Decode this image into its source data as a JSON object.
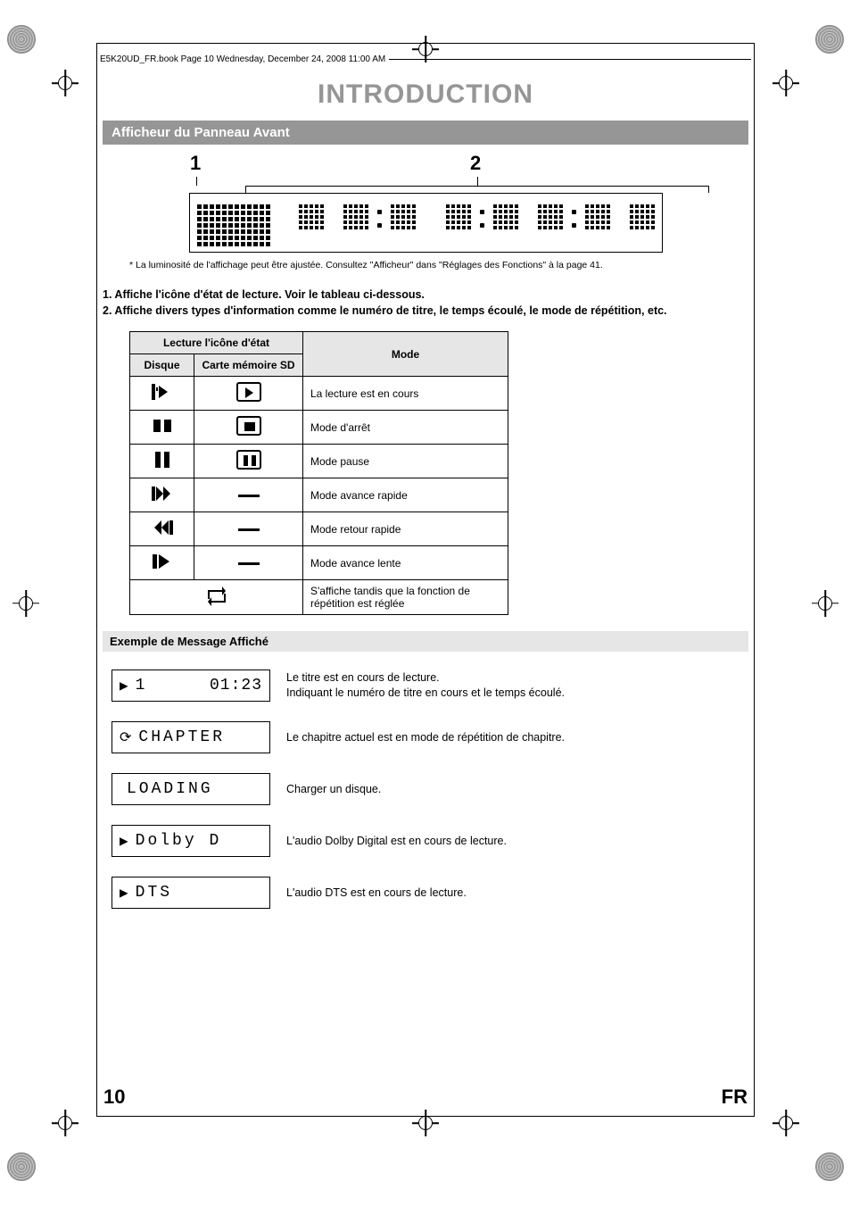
{
  "header_text": "E5K20UD_FR.book  Page 10  Wednesday, December 24, 2008  11:00 AM",
  "title": "INTRODUCTION",
  "section": "Afficheur du Panneau Avant",
  "figure": {
    "label1": "1",
    "label2": "2"
  },
  "figure_note": "* La luminosité de l'affichage peut être ajustée. Consultez \"Afficheur\" dans \"Réglages des Fonctions\" à la page 41.",
  "list": {
    "item1": "1.  Affiche l'icône d'état de lecture. Voir le tableau ci-dessous.",
    "item2": "2.  Affiche divers types d'information comme le numéro de titre, le temps écoulé, le mode de répétition, etc."
  },
  "table": {
    "head_icon": "Lecture l'icône d'état",
    "head_disc": "Disque",
    "head_sd": "Carte mémoire SD",
    "head_mode": "Mode",
    "rows": [
      {
        "mode": "La lecture est en cours",
        "sd": "play"
      },
      {
        "mode": "Mode d'arrêt",
        "sd": "stop"
      },
      {
        "mode": "Mode pause",
        "sd": "pause"
      },
      {
        "mode": "Mode avance rapide",
        "sd": "dash"
      },
      {
        "mode": "Mode retour rapide",
        "sd": "dash"
      },
      {
        "mode": "Mode avance lente",
        "sd": "dash"
      },
      {
        "mode": "S'affiche tandis que la fonction de répétition est réglée",
        "sd": "merged"
      }
    ]
  },
  "sub_section": "Exemple de Message Affiché",
  "examples": [
    {
      "pre": "▶",
      "txt": "1",
      "time": "01:23",
      "desc": "Le titre est en cours de lecture.\nIndiquant le numéro de titre en cours et le temps écoulé."
    },
    {
      "pre": "⟳",
      "txt": "CHAPTER",
      "time": "",
      "desc": "Le chapitre actuel est en mode de répétition de chapitre."
    },
    {
      "pre": "",
      "txt": "LOADING",
      "time": "",
      "desc": "Charger un disque."
    },
    {
      "pre": "▶",
      "txt": "Dolby D",
      "time": "",
      "desc": "L'audio Dolby Digital est en cours de lecture."
    },
    {
      "pre": "▶",
      "txt": "DTS",
      "time": "",
      "desc": "L'audio DTS est en cours de lecture."
    }
  ],
  "footer": {
    "page": "10",
    "lang": "FR"
  },
  "colors": {
    "accent_grey": "#969696",
    "light_grey": "#e6e6e6",
    "text": "#000000",
    "bg": "#ffffff"
  }
}
